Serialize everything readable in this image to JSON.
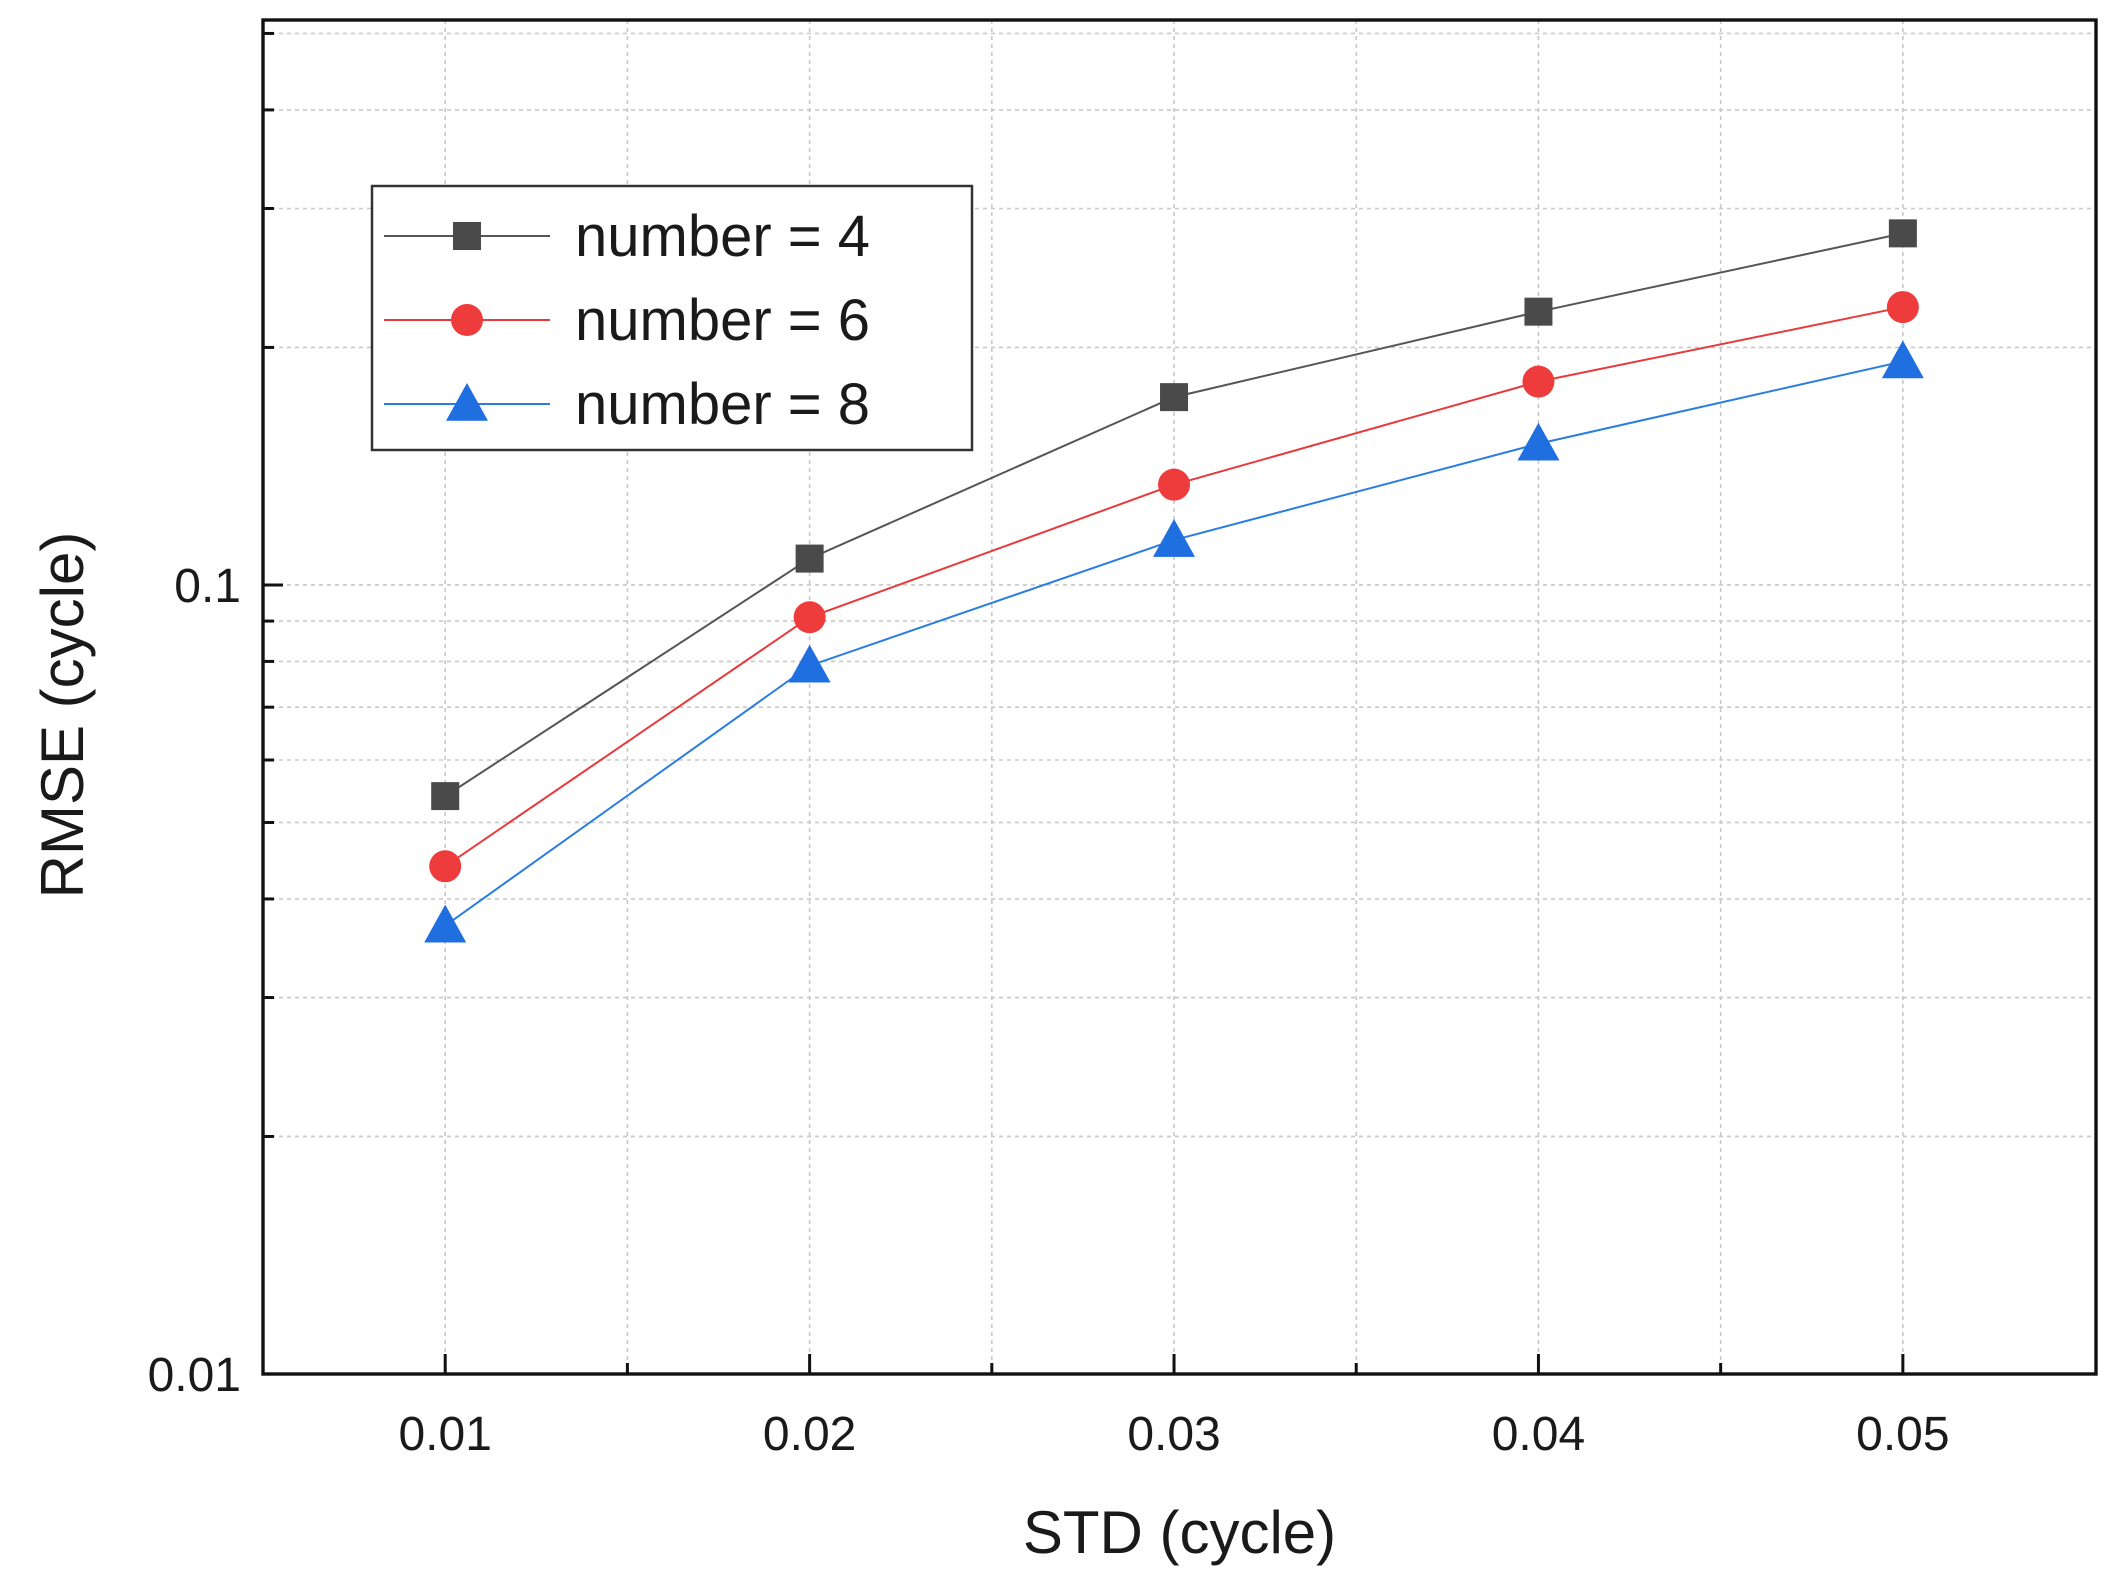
{
  "chart_data": {
    "type": "line",
    "xlabel": "STD (cycle)",
    "ylabel": "RMSE (cycle)",
    "x": [
      0.01,
      0.02,
      0.03,
      0.04,
      0.05
    ],
    "x_tick_labels": [
      "0.01",
      "0.02",
      "0.03",
      "0.04",
      "0.05"
    ],
    "xlim": [
      0.005,
      0.0553
    ],
    "y_scale": "log",
    "ylim": [
      0.01,
      0.52
    ],
    "y_tick_labels": [
      "0.01",
      "0.1"
    ],
    "y_tick_values": [
      0.01,
      0.1
    ],
    "grid": true,
    "legend_position": "top-left",
    "series": [
      {
        "name": "number = 4",
        "marker": "square",
        "color": "#4a4a4a",
        "line_color": "#555555",
        "values": [
          0.054,
          0.108,
          0.173,
          0.222,
          0.279
        ]
      },
      {
        "name": "number = 6",
        "marker": "circle",
        "color": "#ee3b3b",
        "line_color": "#e8393c",
        "values": [
          0.044,
          0.091,
          0.134,
          0.181,
          0.225
        ]
      },
      {
        "name": "number = 8",
        "marker": "triangle",
        "color": "#1f6fe0",
        "line_color": "#2a7de1",
        "values": [
          0.037,
          0.079,
          0.114,
          0.151,
          0.192
        ]
      }
    ]
  }
}
